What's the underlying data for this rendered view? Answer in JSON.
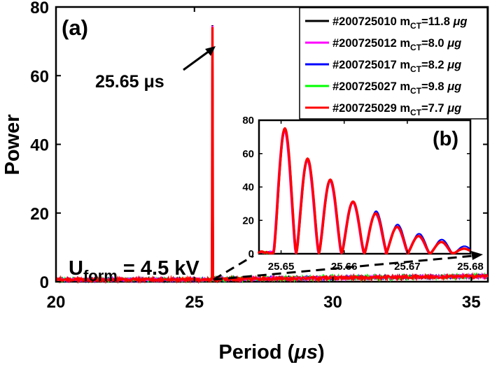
{
  "chart_data": [
    {
      "id": "main",
      "type": "line",
      "panel_label": "(a)",
      "xlabel": "Period (",
      "xlabel_unit": "μs",
      "xlabel_close": ")",
      "ylabel": "Power",
      "xlim": [
        20,
        35.6
      ],
      "ylim": [
        0,
        80
      ],
      "xticks": [
        20,
        25,
        30,
        35
      ],
      "yticks": [
        0,
        20,
        40,
        60,
        80
      ],
      "annotations": {
        "peak_label": "25.65 μs",
        "uform_main": "U",
        "uform_sub": "form",
        "uform_value": " = 4.5 kV"
      },
      "peak": {
        "x": 25.65,
        "y": 74.5
      },
      "series": [
        {
          "name": "#200725010",
          "m_ct": "11.8",
          "color": "#000000"
        },
        {
          "name": "#200725012",
          "m_ct": "8.0",
          "color": "#ff00ff"
        },
        {
          "name": "#200725017",
          "m_ct": "8.2",
          "color": "#0000ff"
        },
        {
          "name": "#200725027",
          "m_ct": "9.8",
          "color": "#00ff00"
        },
        {
          "name": "#200725029",
          "m_ct": "7.7",
          "color": "#ff0000"
        }
      ],
      "legend": {
        "m_label": "m",
        "m_sub": "CT",
        "unit": "μg",
        "placement": "top-right"
      }
    },
    {
      "id": "inset",
      "type": "line",
      "panel_label": "(b)",
      "xlim": [
        25.6465,
        25.68
      ],
      "ylim": [
        0,
        80
      ],
      "xticks": [
        25.65,
        25.66,
        25.67,
        25.68
      ],
      "xtick_labels": [
        "25.65",
        "25.66",
        "25.67",
        "25.68"
      ],
      "yticks": [
        0,
        20,
        40,
        60,
        80
      ],
      "lobes": [
        {
          "x": 25.6506,
          "y": 74.5
        },
        {
          "x": 25.6542,
          "y": 56.5
        },
        {
          "x": 25.6578,
          "y": 44.0
        },
        {
          "x": 25.6614,
          "y": 31.0
        },
        {
          "x": 25.665,
          "y": 24.0
        },
        {
          "x": 25.6684,
          "y": 16.0
        },
        {
          "x": 25.6718,
          "y": 10.5
        },
        {
          "x": 25.6754,
          "y": 7.0
        },
        {
          "x": 25.679,
          "y": 3.0
        }
      ],
      "null_spacing": 0.0036
    }
  ],
  "colors": {
    "axis": "#000000",
    "background": "#ffffff"
  }
}
